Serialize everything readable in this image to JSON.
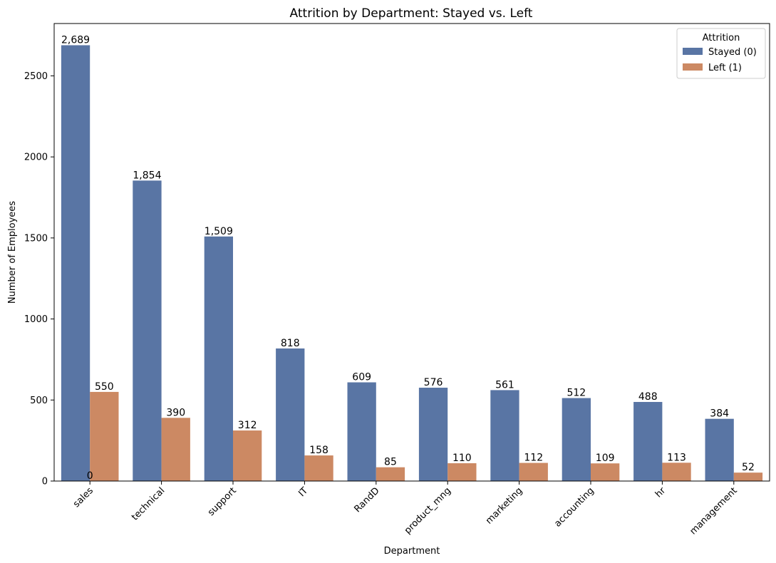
{
  "chart_data": {
    "type": "bar",
    "title": "Attrition by Department: Stayed vs. Left",
    "xlabel": "Department",
    "ylabel": "Number of Employees",
    "categories": [
      "sales",
      "technical",
      "support",
      "IT",
      "RandD",
      "product_mng",
      "marketing",
      "accounting",
      "hr",
      "management"
    ],
    "series": [
      {
        "name": "Stayed (0)",
        "color": "#5975a4",
        "values": [
          2689,
          1854,
          1509,
          818,
          609,
          576,
          561,
          512,
          488,
          384
        ]
      },
      {
        "name": "Left (1)",
        "color": "#cc8963",
        "values": [
          550,
          390,
          312,
          158,
          85,
          110,
          112,
          109,
          113,
          52
        ]
      }
    ],
    "data_labels": [
      [
        "2,689",
        "1,854",
        "1,509",
        "818",
        "609",
        "576",
        "561",
        "512",
        "488",
        "384"
      ],
      [
        "550",
        "390",
        "312",
        "158",
        "85",
        "110",
        "112",
        "109",
        "113",
        "52"
      ]
    ],
    "extra_label": "0",
    "yticks": [
      0,
      500,
      1000,
      1500,
      2000,
      2500
    ],
    "ylim": [
      0,
      2823
    ],
    "grid": false,
    "legend": {
      "title": "Attrition",
      "position": "top-right"
    }
  }
}
